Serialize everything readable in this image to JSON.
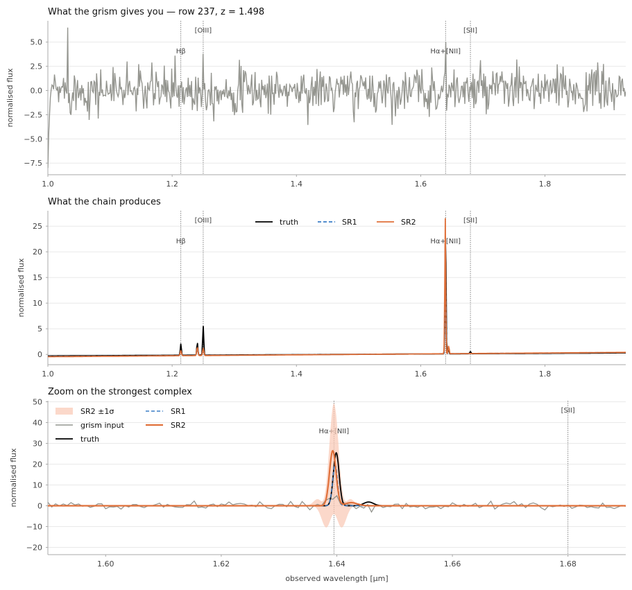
{
  "colors": {
    "grism": "#94958f",
    "truth": "#000000",
    "sr1": "#3a7dc6",
    "sr2": "#e0703a",
    "band": "#f9c8b3"
  },
  "chart_data": [
    {
      "type": "line",
      "title": "What the grism gives you  —  row 237, z = 1.498",
      "xlabel": "",
      "ylabel": "normalised flux",
      "xlim": [
        1.0,
        1.93
      ],
      "ylim": [
        -8.7,
        7.2
      ],
      "xticks": [
        "1.0",
        "1.2",
        "1.4",
        "1.6",
        "1.8"
      ],
      "yticks": [
        "5.0",
        "2.5",
        "0.0",
        "−2.5",
        "−5.0",
        "−7.5"
      ],
      "grid": true,
      "legend": "none",
      "line_annotations": [
        {
          "x": 1.214,
          "label": "Hβ",
          "level": "low"
        },
        {
          "x": 1.25,
          "label": "[OIII]",
          "level": "high"
        },
        {
          "x": 1.64,
          "label": "Hα+[NII]",
          "level": "low"
        },
        {
          "x": 1.68,
          "label": "[SII]",
          "level": "high"
        }
      ],
      "series": [
        {
          "key": "grism",
          "kind": "noise",
          "sigma": 1.15,
          "edge_dip": [
            -8.0,
            -4.5,
            -2.5
          ],
          "spikes": [
            {
              "x": 1.032,
              "y": 6.5
            },
            {
              "x": 1.128,
              "y": 3.0
            },
            {
              "x": 1.205,
              "y": 3.6
            },
            {
              "x": 1.25,
              "y": 3.8
            },
            {
              "x": 1.64,
              "y": 5.0
            },
            {
              "x": 1.755,
              "y": 3.2
            },
            {
              "x": 1.885,
              "y": 2.9
            }
          ]
        }
      ]
    },
    {
      "type": "line",
      "title": "What the chain produces",
      "xlabel": "",
      "ylabel": "normalised flux",
      "xlim": [
        1.0,
        1.93
      ],
      "ylim": [
        -2.0,
        28.0
      ],
      "xticks": [
        "1.0",
        "1.2",
        "1.4",
        "1.6",
        "1.8"
      ],
      "yticks": [
        "25",
        "20",
        "15",
        "10",
        "5",
        "0"
      ],
      "grid": true,
      "legend": "top-center",
      "line_annotations": [
        {
          "x": 1.214,
          "label": "Hβ",
          "level": "low"
        },
        {
          "x": 1.25,
          "label": "[OIII]",
          "level": "high"
        },
        {
          "x": 1.64,
          "label": "Hα+[NII]",
          "level": "low"
        },
        {
          "x": 1.68,
          "label": "[SII]",
          "level": "high"
        }
      ],
      "series": [
        {
          "key": "truth",
          "name": "truth",
          "kind": "lines",
          "width": 1.8,
          "base": [
            -0.3,
            0.3
          ],
          "peaks": [
            {
              "x": 1.214,
              "h": 2.2,
              "w": 0.0012
            },
            {
              "x": 1.2405,
              "h": 2.4,
              "w": 0.0012
            },
            {
              "x": 1.25,
              "h": 5.6,
              "w": 0.0012
            },
            {
              "x": 1.64,
              "h": 25.5,
              "w": 0.0011
            },
            {
              "x": 1.6445,
              "h": 1.2,
              "w": 0.0012
            },
            {
              "x": 1.68,
              "h": 0.4,
              "w": 0.0015
            }
          ]
        },
        {
          "key": "sr1",
          "name": "SR1",
          "kind": "lines",
          "width": 1.4,
          "dash": "5 3",
          "base": [
            -0.4,
            0.4
          ],
          "peaks": [
            {
              "x": 1.214,
              "h": 0.8,
              "w": 0.0014
            },
            {
              "x": 1.2405,
              "h": 1.0,
              "w": 0.0014
            },
            {
              "x": 1.25,
              "h": 1.1,
              "w": 0.0014
            },
            {
              "x": 1.64,
              "h": 20.0,
              "w": 0.001
            }
          ]
        },
        {
          "key": "sr2",
          "name": "SR2",
          "kind": "lines",
          "width": 1.8,
          "base": [
            -0.45,
            0.4
          ],
          "peaks": [
            {
              "x": 1.214,
              "h": 1.0,
              "w": 0.0014
            },
            {
              "x": 1.2405,
              "h": 1.6,
              "w": 0.0014
            },
            {
              "x": 1.25,
              "h": 1.4,
              "w": 0.0014
            },
            {
              "x": 1.6395,
              "h": 26.8,
              "w": 0.001
            },
            {
              "x": 1.645,
              "h": 1.5,
              "w": 0.0012
            }
          ]
        }
      ]
    },
    {
      "type": "line",
      "title": "Zoom on the strongest complex",
      "xlabel": "observed wavelength [μm]",
      "ylabel": "normalised flux",
      "xlim": [
        1.59,
        1.69
      ],
      "ylim": [
        -23.5,
        50.5
      ],
      "xticks": [
        "1.60",
        "1.62",
        "1.64",
        "1.66",
        "1.68"
      ],
      "yticks": [
        "50",
        "40",
        "30",
        "20",
        "10",
        "0",
        "−10",
        "−20"
      ],
      "grid": true,
      "legend": "top-left",
      "line_annotations": [
        {
          "x": 1.6395,
          "label": "Hα+[NII]",
          "level": "low"
        },
        {
          "x": 1.68,
          "label": "[SII]",
          "level": "high"
        }
      ],
      "series": [
        {
          "key": "band",
          "name": "SR2 ±1σ",
          "kind": "band",
          "center": 1.6395,
          "upper": 48,
          "lower": -20
        },
        {
          "key": "grism",
          "name": "grism input",
          "kind": "noise",
          "sigma": 0.9,
          "peaks": [
            {
              "x": 1.6395,
              "h": 4.5,
              "w": 0.0012
            }
          ]
        },
        {
          "key": "truth",
          "name": "truth",
          "kind": "lines",
          "width": 1.8,
          "base": [
            0,
            0
          ],
          "peaks": [
            {
              "x": 1.6399,
              "h": 25.5,
              "w": 0.0007
            },
            {
              "x": 1.6455,
              "h": 1.8,
              "w": 0.0012
            }
          ]
        },
        {
          "key": "sr1",
          "name": "SR1",
          "kind": "lines",
          "width": 1.5,
          "dash": "5 3",
          "base": [
            0,
            0
          ],
          "peaks": [
            {
              "x": 1.6397,
              "h": 20.0,
              "w": 0.0006
            }
          ]
        },
        {
          "key": "sr2",
          "name": "SR2",
          "kind": "lines",
          "width": 2.2,
          "base": [
            0,
            0
          ],
          "peaks": [
            {
              "x": 1.6393,
              "h": 26.5,
              "w": 0.0008
            },
            {
              "x": 1.6425,
              "h": 1.5,
              "w": 0.0015
            }
          ]
        }
      ]
    }
  ]
}
